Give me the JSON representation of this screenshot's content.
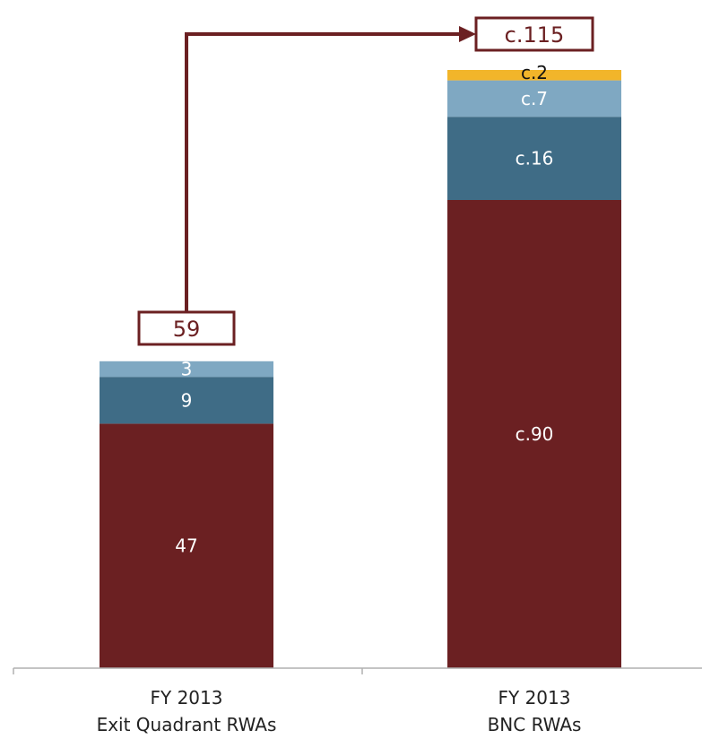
{
  "chart_data": {
    "type": "bar",
    "stacked": true,
    "categories": [
      [
        "FY 2013",
        "Exit Quadrant RWAs"
      ],
      [
        "FY 2013",
        "BNC RWAs"
      ]
    ],
    "stack_order": [
      "s1",
      "s2",
      "s3",
      "s4"
    ],
    "series": [
      {
        "id": "s1",
        "color": "#6b2022",
        "values": [
          47,
          90
        ],
        "labels": [
          "47",
          "c.90"
        ]
      },
      {
        "id": "s2",
        "color": "#3f6c86",
        "values": [
          9,
          16
        ],
        "labels": [
          "9",
          "c.16"
        ]
      },
      {
        "id": "s3",
        "color": "#7fa8c2",
        "values": [
          3,
          7
        ],
        "labels": [
          "3",
          "c.7"
        ]
      },
      {
        "id": "s4",
        "color": "#f2b52a",
        "values": [
          0,
          2
        ],
        "labels": [
          "",
          "c.2"
        ]
      }
    ],
    "totals": [
      "59",
      "c.115"
    ],
    "ylim": [
      0,
      115
    ],
    "arrow": {
      "from": 0,
      "to": 1,
      "color": "#6b2022"
    },
    "grid": false,
    "legend": "none"
  }
}
